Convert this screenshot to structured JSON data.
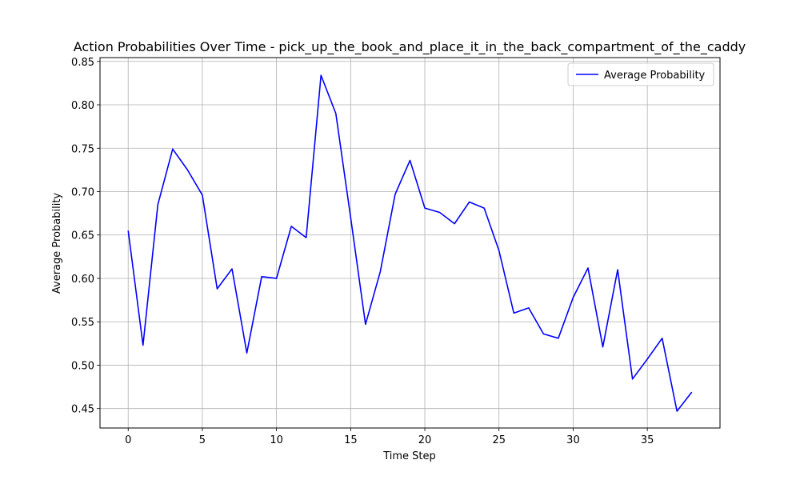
{
  "chart_data": {
    "type": "line",
    "title": "Action Probabilities Over Time - pick_up_the_book_and_place_it_in_the_back_compartment_of_the_caddy",
    "xlabel": "Time Step",
    "ylabel": "Average Probability",
    "xlim": [
      -1.9,
      39.9
    ],
    "ylim": [
      0.4276,
      0.8544
    ],
    "xticks": [
      0,
      5,
      10,
      15,
      20,
      25,
      30,
      35
    ],
    "yticks": [
      0.45,
      0.5,
      0.55,
      0.6,
      0.65,
      0.7,
      0.75,
      0.8,
      0.85
    ],
    "ytick_labels": [
      "0.45",
      "0.50",
      "0.55",
      "0.60",
      "0.65",
      "0.70",
      "0.75",
      "0.80",
      "0.85"
    ],
    "grid": true,
    "legend_position": "top-right",
    "series": [
      {
        "name": "Average Probability",
        "color": "#0000ff",
        "x": [
          0,
          1,
          2,
          3,
          4,
          5,
          6,
          7,
          8,
          9,
          10,
          11,
          12,
          13,
          14,
          15,
          16,
          17,
          18,
          19,
          20,
          21,
          22,
          23,
          24,
          25,
          26,
          27,
          28,
          29,
          30,
          31,
          32,
          33,
          34,
          35,
          36,
          37,
          38
        ],
        "y": [
          0.655,
          0.523,
          0.685,
          0.749,
          0.725,
          0.696,
          0.588,
          0.611,
          0.514,
          0.602,
          0.6,
          0.66,
          0.647,
          0.834,
          0.79,
          0.67,
          0.547,
          0.608,
          0.697,
          0.736,
          0.681,
          0.676,
          0.663,
          0.688,
          0.681,
          0.632,
          0.56,
          0.566,
          0.536,
          0.531,
          0.578,
          0.612,
          0.521,
          0.61,
          0.484,
          0.507,
          0.531,
          0.447,
          0.469
        ]
      }
    ]
  }
}
